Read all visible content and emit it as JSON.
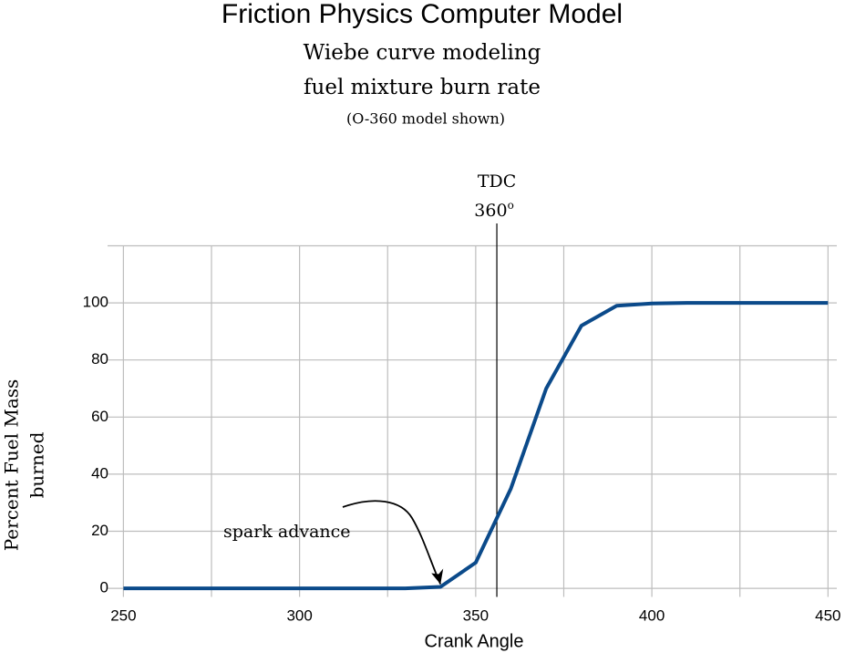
{
  "chart_data": {
    "type": "line",
    "title": "Friction Physics Computer Model",
    "subtitle": [
      "Wiebe curve modeling",
      "fuel mixture burn rate",
      "(O-360 model shown)"
    ],
    "x_label": "Crank Angle",
    "y_label": [
      "Percent Fuel Mass",
      "burned"
    ],
    "x": [
      250,
      260,
      270,
      280,
      290,
      300,
      310,
      320,
      330,
      340,
      350,
      360,
      370,
      380,
      390,
      400,
      410,
      420,
      430,
      440,
      450
    ],
    "values": [
      0,
      0,
      0,
      0,
      0,
      0,
      0,
      0,
      0,
      0.5,
      9,
      35,
      70,
      92,
      99,
      99.8,
      100,
      100,
      100,
      100,
      100
    ],
    "color": "#0b4a8a",
    "xlim": [
      245.5,
      452.5
    ],
    "ylim": [
      -3,
      120
    ],
    "xticks": [
      250,
      300,
      350,
      400,
      450
    ],
    "xgrid": [
      250,
      275,
      300,
      325,
      350,
      375,
      400,
      425,
      450
    ],
    "yticks": [
      0,
      20,
      40,
      60,
      80,
      100
    ],
    "grid": true,
    "tdc": {
      "label": "TDC",
      "angle": "360",
      "degree": "o",
      "x": 356
    },
    "annotation": {
      "text": "spark advance",
      "x": 340,
      "y": 0.5
    }
  }
}
